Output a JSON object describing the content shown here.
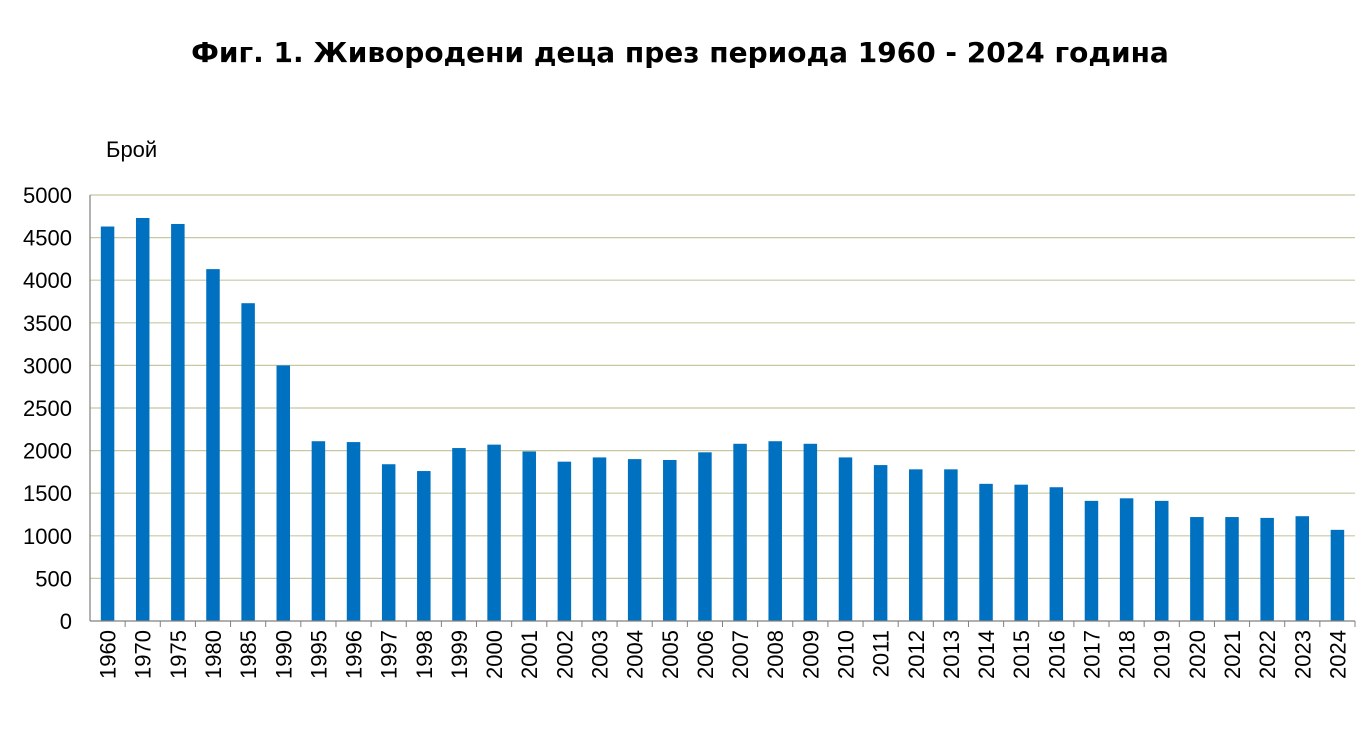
{
  "chart_data": {
    "type": "bar",
    "title": "Фиг. 1. Живородени деца през периода 1960 - 2024 година",
    "ylabel": "Брой",
    "xlabel": "",
    "ylim": [
      0,
      5000
    ],
    "yticks": [
      "0",
      "500",
      "1000",
      "1500",
      "2000",
      "2500",
      "3000",
      "3500",
      "4000",
      "4500",
      "5000"
    ],
    "grid": true,
    "bar_color": "#0070c0",
    "grid_color": "#c8c8a0",
    "categories": [
      "1960",
      "1970",
      "1975",
      "1980",
      "1985",
      "1990",
      "1995",
      "1996",
      "1997",
      "1998",
      "1999",
      "2000",
      "2001",
      "2002",
      "2003",
      "2004",
      "2005",
      "2006",
      "2007",
      "2008",
      "2009",
      "2010",
      "2011",
      "2012",
      "2013",
      "2014",
      "2015",
      "2016",
      "2017",
      "2018",
      "2019",
      "2020",
      "2021",
      "2022",
      "2023",
      "2024"
    ],
    "values": [
      4630,
      4730,
      4660,
      4130,
      3730,
      3000,
      2110,
      2100,
      1840,
      1760,
      2030,
      2070,
      1990,
      1870,
      1920,
      1900,
      1890,
      1980,
      2080,
      2110,
      2080,
      1920,
      1830,
      1780,
      1780,
      1610,
      1600,
      1570,
      1410,
      1440,
      1410,
      1220,
      1220,
      1210,
      1230,
      1070
    ]
  }
}
